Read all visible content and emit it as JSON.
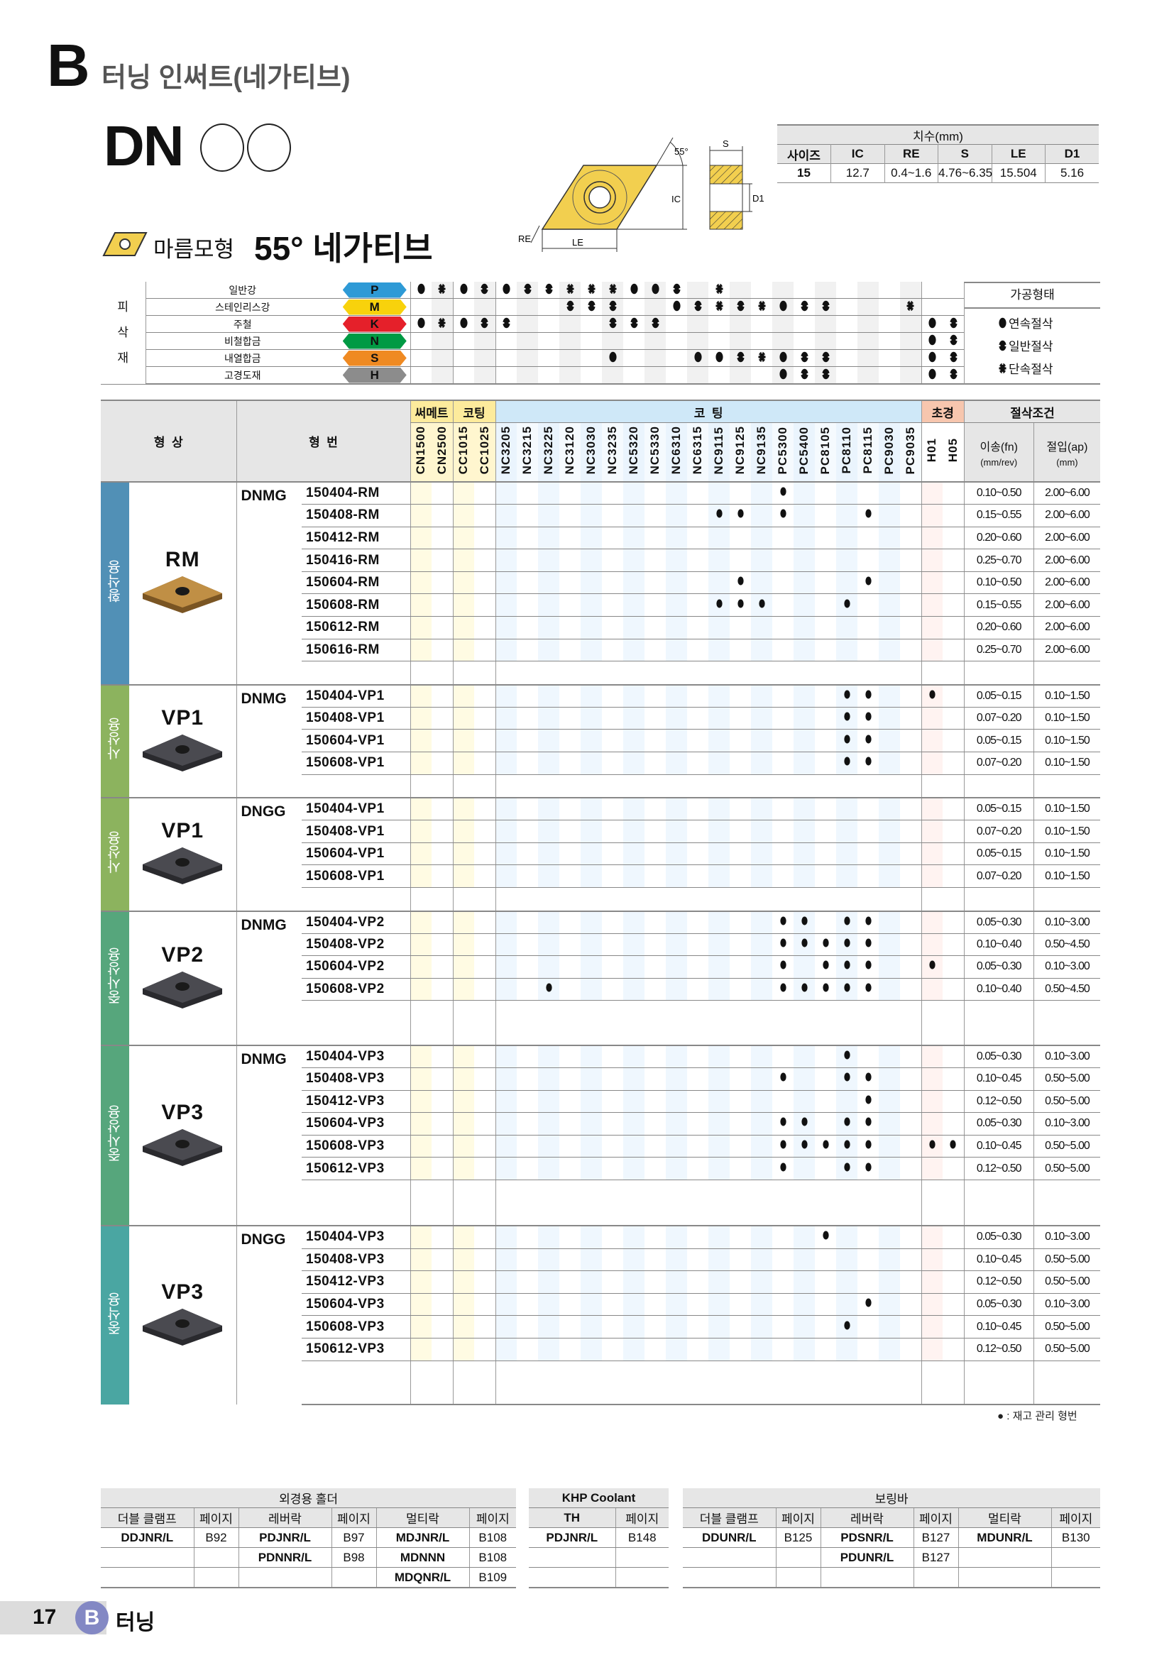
{
  "header": {
    "section_letter": "B",
    "section_title": "터닝 인써트(네가티브)",
    "series_title": "DN",
    "shape_name": "마름모형",
    "shape_angle": "55° 네가티브"
  },
  "diagram": {
    "labels": {
      "angle": "55°",
      "ic": "IC",
      "s": "S",
      "d1": "D1",
      "re": "RE",
      "le": "LE"
    }
  },
  "dimensions": {
    "title": "치수(mm)",
    "headers": [
      "사이즈",
      "IC",
      "RE",
      "S",
      "LE",
      "D1"
    ],
    "row": [
      "15",
      "12.7",
      "0.4~1.6",
      "4.76~6.35",
      "15.504",
      "5.16"
    ]
  },
  "materials": {
    "group_label": [
      "피",
      "삭",
      "재"
    ],
    "rows": [
      {
        "name": "일반강",
        "iso": "P",
        "color": "#2e9ad6",
        "symbols": "CICGCGGIIICCG-I-----------"
      },
      {
        "name": "스테인리스강",
        "iso": "M",
        "color": "#f8d20c",
        "symbols": "-------GGG--CGIGICGG---I--"
      },
      {
        "name": "주철",
        "iso": "K",
        "color": "#e5202a",
        "symbols": "CICGG----GGG------------CG"
      },
      {
        "name": "비철합금",
        "iso": "N",
        "color": "#009a44",
        "symbols": "------------------------CG"
      },
      {
        "name": "내열합금",
        "iso": "S",
        "color": "#ef8a22",
        "symbols": "---------C---CCGICGG----CG"
      },
      {
        "name": "고경도재",
        "iso": "H",
        "color": "#8c8c8c",
        "symbols": "-----------------CGG----CG"
      }
    ],
    "process_title": "가공형태",
    "legend": [
      {
        "symbol": "C",
        "label": "연속절삭"
      },
      {
        "symbol": "G",
        "label": "일반절삭"
      },
      {
        "symbol": "I",
        "label": "단속절삭"
      }
    ]
  },
  "table": {
    "shape_header": "형  상",
    "model_header": "형  번",
    "groups": [
      "써메트",
      "코팅",
      "코  팅",
      "초경",
      "절삭조건"
    ],
    "feed_header": "이송(fn)",
    "feed_unit": "(mm/rev)",
    "depth_header": "절입(ap)",
    "depth_unit": "(mm)",
    "grades": [
      "CN1500",
      "CN2500",
      "CC1015",
      "CC1025",
      "NC3205",
      "NC3215",
      "NC3225",
      "NC3120",
      "NC3030",
      "NC3235",
      "NC5320",
      "NC5330",
      "NC6310",
      "NC6315",
      "NC9115",
      "NC9125",
      "NC9135",
      "PC5300",
      "PC5400",
      "PC8105",
      "PC8110",
      "PC8115",
      "PC9030",
      "PC9035",
      "H01",
      "H05"
    ],
    "sections": [
      {
        "label": "황삭용",
        "color": "#5190b6",
        "chipbreaker": "RM",
        "insert": "gold",
        "series": "DNMG",
        "rows": [
          {
            "model": "150404-RM",
            "grades": [
              "PC5300"
            ],
            "fn": "0.10~0.50",
            "ap": "2.00~6.00"
          },
          {
            "model": "150408-RM",
            "grades": [
              "NC9115",
              "NC9125",
              "PC5300",
              "PC8115"
            ],
            "fn": "0.15~0.55",
            "ap": "2.00~6.00"
          },
          {
            "model": "150412-RM",
            "grades": [],
            "fn": "0.20~0.60",
            "ap": "2.00~6.00"
          },
          {
            "model": "150416-RM",
            "grades": [],
            "fn": "0.25~0.70",
            "ap": "2.00~6.00"
          },
          {
            "model": "150604-RM",
            "grades": [
              "NC9125",
              "PC8115"
            ],
            "fn": "0.10~0.50",
            "ap": "2.00~6.00"
          },
          {
            "model": "150608-RM",
            "grades": [
              "NC9115",
              "NC9125",
              "NC9135",
              "PC8110"
            ],
            "fn": "0.15~0.55",
            "ap": "2.00~6.00"
          },
          {
            "model": "150612-RM",
            "grades": [],
            "fn": "0.20~0.60",
            "ap": "2.00~6.00"
          },
          {
            "model": "150616-RM",
            "grades": [],
            "fn": "0.25~0.70",
            "ap": "2.00~6.00"
          }
        ]
      },
      {
        "label": "사상용",
        "color": "#8cb35e",
        "chipbreaker": "VP1",
        "insert": "dark",
        "series": "DNMG",
        "rows": [
          {
            "model": "150404-VP1",
            "grades": [
              "PC8110",
              "PC8115",
              "H01"
            ],
            "fn": "0.05~0.15",
            "ap": "0.10~1.50"
          },
          {
            "model": "150408-VP1",
            "grades": [
              "PC8110",
              "PC8115"
            ],
            "fn": "0.07~0.20",
            "ap": "0.10~1.50"
          },
          {
            "model": "150604-VP1",
            "grades": [
              "PC8110",
              "PC8115"
            ],
            "fn": "0.05~0.15",
            "ap": "0.10~1.50"
          },
          {
            "model": "150608-VP1",
            "grades": [
              "PC8110",
              "PC8115"
            ],
            "fn": "0.07~0.20",
            "ap": "0.10~1.50"
          }
        ]
      },
      {
        "label": "사상용",
        "color": "#8cb35e",
        "chipbreaker": "VP1",
        "insert": "dark",
        "series": "DNGG",
        "rows": [
          {
            "model": "150404-VP1",
            "grades": [],
            "fn": "0.05~0.15",
            "ap": "0.10~1.50"
          },
          {
            "model": "150408-VP1",
            "grades": [],
            "fn": "0.07~0.20",
            "ap": "0.10~1.50"
          },
          {
            "model": "150604-VP1",
            "grades": [],
            "fn": "0.05~0.15",
            "ap": "0.10~1.50"
          },
          {
            "model": "150608-VP1",
            "grades": [],
            "fn": "0.07~0.20",
            "ap": "0.10~1.50"
          }
        ]
      },
      {
        "label": "중사상용",
        "color": "#56a67c",
        "chipbreaker": "VP2",
        "insert": "dark",
        "series": "DNMG",
        "rows": [
          {
            "model": "150404-VP2",
            "grades": [
              "PC5300",
              "PC5400",
              "PC8110",
              "PC8115"
            ],
            "fn": "0.05~0.30",
            "ap": "0.10~3.00"
          },
          {
            "model": "150408-VP2",
            "grades": [
              "PC5300",
              "PC5400",
              "PC8105",
              "PC8110",
              "PC8115"
            ],
            "fn": "0.10~0.40",
            "ap": "0.50~4.50"
          },
          {
            "model": "150604-VP2",
            "grades": [
              "PC5300",
              "PC8105",
              "PC8110",
              "PC8115",
              "H01"
            ],
            "fn": "0.05~0.30",
            "ap": "0.10~3.00"
          },
          {
            "model": "150608-VP2",
            "grades": [
              "NC3225",
              "PC5300",
              "PC5400",
              "PC8105",
              "PC8110",
              "PC8115"
            ],
            "fn": "0.10~0.40",
            "ap": "0.50~4.50"
          }
        ]
      },
      {
        "label": "중사상용",
        "color": "#56a67c",
        "chipbreaker": "VP3",
        "insert": "dark",
        "series": "DNMG",
        "rows": [
          {
            "model": "150404-VP3",
            "grades": [
              "PC8110"
            ],
            "fn": "0.05~0.30",
            "ap": "0.10~3.00"
          },
          {
            "model": "150408-VP3",
            "grades": [
              "PC5300",
              "PC8110",
              "PC8115"
            ],
            "fn": "0.10~0.45",
            "ap": "0.50~5.00"
          },
          {
            "model": "150412-VP3",
            "grades": [
              "PC8115"
            ],
            "fn": "0.12~0.50",
            "ap": "0.50~5.00"
          },
          {
            "model": "150604-VP3",
            "grades": [
              "PC5300",
              "PC5400",
              "PC8110",
              "PC8115"
            ],
            "fn": "0.05~0.30",
            "ap": "0.10~3.00"
          },
          {
            "model": "150608-VP3",
            "grades": [
              "PC5300",
              "PC5400",
              "PC8105",
              "PC8110",
              "PC8115",
              "H01",
              "H05"
            ],
            "fn": "0.10~0.45",
            "ap": "0.50~5.00"
          },
          {
            "model": "150612-VP3",
            "grades": [
              "PC5300",
              "PC8110",
              "PC8115"
            ],
            "fn": "0.12~0.50",
            "ap": "0.50~5.00"
          }
        ]
      },
      {
        "label": "중삭용",
        "color": "#4aa6a2",
        "chipbreaker": "VP3",
        "insert": "dark",
        "series": "DNGG",
        "rows": [
          {
            "model": "150404-VP3",
            "grades": [
              "PC8105"
            ],
            "fn": "0.05~0.30",
            "ap": "0.10~3.00"
          },
          {
            "model": "150408-VP3",
            "grades": [],
            "fn": "0.10~0.45",
            "ap": "0.50~5.00"
          },
          {
            "model": "150412-VP3",
            "grades": [],
            "fn": "0.12~0.50",
            "ap": "0.50~5.00"
          },
          {
            "model": "150604-VP3",
            "grades": [
              "PC8115"
            ],
            "fn": "0.05~0.30",
            "ap": "0.10~3.00"
          },
          {
            "model": "150608-VP3",
            "grades": [
              "PC8110"
            ],
            "fn": "0.10~0.45",
            "ap": "0.50~5.00"
          },
          {
            "model": "150612-VP3",
            "grades": [],
            "fn": "0.12~0.50",
            "ap": "0.50~5.00"
          }
        ]
      }
    ],
    "stock_note": ": 재고 관리 형번"
  },
  "holders": {
    "external": {
      "title": "외경용 홀더",
      "headers": [
        "더블 클램프",
        "페이지",
        "레버락",
        "페이지",
        "멀티락",
        "페이지"
      ],
      "rows": [
        [
          "DDJNR/L",
          "B92",
          "PDJNR/L",
          "B97",
          "MDJNR/L",
          "B108"
        ],
        [
          "",
          "",
          "PDNNR/L",
          "B98",
          "MDNNN",
          "B108"
        ],
        [
          "",
          "",
          "",
          "",
          "MDQNR/L",
          "B109"
        ]
      ]
    },
    "khp": {
      "title": "KHP Coolant",
      "headers": [
        "TH",
        "페이지"
      ],
      "rows": [
        [
          "PDJNR/L",
          "B148"
        ],
        [
          "",
          ""
        ],
        [
          "",
          ""
        ]
      ]
    },
    "boring": {
      "title": "보링바",
      "headers": [
        "더블 클램프",
        "페이지",
        "레버락",
        "페이지",
        "멀티락",
        "페이지"
      ],
      "rows": [
        [
          "DDUNR/L",
          "B125",
          "PDSNR/L",
          "B127",
          "MDUNR/L",
          "B130"
        ],
        [
          "",
          "",
          "PDUNR/L",
          "B127",
          "",
          ""
        ],
        [
          "",
          "",
          "",
          "",
          "",
          ""
        ]
      ]
    }
  },
  "footer": {
    "page": "17",
    "badge": "B",
    "label": "터닝"
  }
}
